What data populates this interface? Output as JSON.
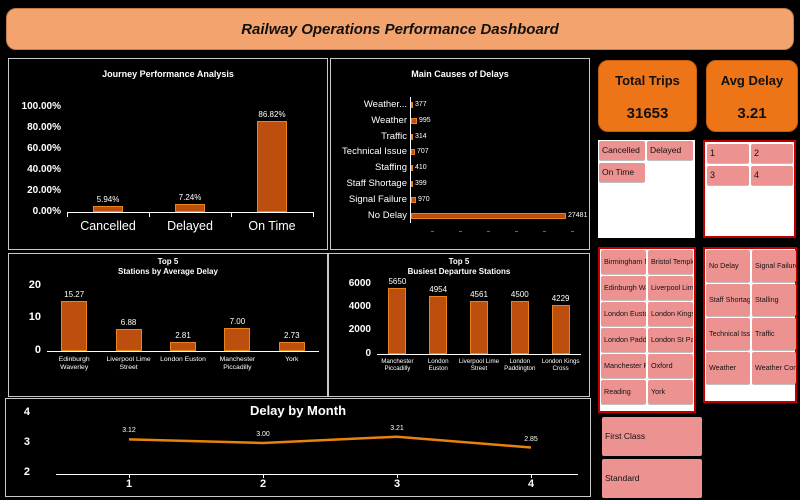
{
  "header": {
    "title": "Railway Operations Performance Dashboard"
  },
  "kpis": {
    "total_trips": {
      "label": "Total Trips",
      "value": "31653"
    },
    "avg_delay": {
      "label": "Avg Delay",
      "value": "3.21"
    }
  },
  "slicers": {
    "status": {
      "items": [
        "Cancelled",
        "Delayed",
        "On Time"
      ]
    },
    "months": {
      "items": [
        "1",
        "2",
        "3",
        "4"
      ]
    },
    "stations": {
      "items": [
        "Birmingham Ne...",
        "Bristol Temple ...",
        "Edinburgh Wav...",
        "Liverpool Lime ...",
        "London Euston",
        "London Kings ...",
        "London Paddin...",
        "London St Pan...",
        "Manchester Pi...",
        "Oxford",
        "Reading",
        "York"
      ]
    },
    "delay_causes": {
      "items": [
        "No Delay",
        "Signal Failure",
        "Staff Shortage",
        "Stalling",
        "Technical Iss...",
        "Traffic",
        "Weather",
        "Weather Con..."
      ]
    },
    "ticket_class": {
      "items": [
        "First Class",
        "Standard"
      ]
    }
  },
  "chart_data": [
    {
      "type": "bar",
      "title": "Journey Performance Analysis",
      "categories": [
        "Cancelled",
        "Delayed",
        "On Time"
      ],
      "values": [
        5.94,
        7.24,
        86.82
      ],
      "labels": [
        "5.94%",
        "7.24%",
        "86.82%"
      ],
      "yticks": [
        "0.00%",
        "20.00%",
        "40.00%",
        "60.00%",
        "80.00%",
        "100.00%"
      ],
      "ylim": [
        0,
        100
      ],
      "grid": false
    },
    {
      "type": "bar",
      "orientation": "horizontal",
      "title": "Main Causes of Delays",
      "categories": [
        "Weather...",
        "Weather",
        "Traffic",
        "Technical Issue",
        "Staffing",
        "Staff Shortage",
        "Signal Failure",
        "No Delay"
      ],
      "values": [
        377,
        995,
        314,
        707,
        410,
        399,
        970,
        27481
      ],
      "labels": [
        "377",
        "995",
        "314",
        "707",
        "410",
        "399",
        "970",
        "27481"
      ],
      "xlim": [
        0,
        27481
      ],
      "grid": false
    },
    {
      "type": "bar",
      "title": "Top 5 Stations by Average Delay",
      "title_lines": [
        "Top 5",
        "Stations by Average Delay"
      ],
      "categories": [
        "Edinburgh Waverley",
        "Liverpool Lime Street",
        "London Euston",
        "Manchester Piccadilly",
        "York"
      ],
      "values": [
        15.27,
        6.88,
        2.81,
        7.0,
        2.73
      ],
      "labels": [
        "15.27",
        "6.88",
        "2.81",
        "7.00",
        "2.73"
      ],
      "yticks": [
        "0",
        "10",
        "20"
      ],
      "ylim": [
        0,
        20
      ],
      "grid": false
    },
    {
      "type": "bar",
      "title": "Top 5 Busiest Departure Stations",
      "title_lines": [
        "Top 5",
        "Busiest Departure Stations"
      ],
      "categories": [
        "Manchester Piccadilly",
        "London Euston",
        "Liverpool Lime Street",
        "London Paddington",
        "London Kings Cross"
      ],
      "cat_lines": [
        [
          "Manchester",
          "Piccadilly"
        ],
        [
          "London Euston"
        ],
        [
          "Liverpool Lime",
          "Street"
        ],
        [
          "London",
          "Paddington"
        ],
        [
          "London Kings Cross"
        ]
      ],
      "values": [
        5650,
        4954,
        4561,
        4500,
        4229
      ],
      "labels": [
        "5650",
        "4954",
        "4561",
        "4500",
        "4229"
      ],
      "yticks": [
        "0",
        "2000",
        "4000",
        "6000"
      ],
      "ylim": [
        0,
        6000
      ],
      "grid": false
    },
    {
      "type": "line",
      "title": "Delay by Month",
      "x": [
        "1",
        "2",
        "3",
        "4"
      ],
      "values": [
        3.12,
        3.0,
        3.21,
        2.85
      ],
      "labels": [
        "3.12",
        "3.00",
        "3.21",
        "2.85"
      ],
      "yticks": [
        "2",
        "3",
        "4"
      ],
      "ylim": [
        2,
        4
      ],
      "grid": false,
      "legend": "none"
    }
  ],
  "colors": {
    "banner_bg": "#F2A36E",
    "kpi_bg": "#EE7418",
    "bar_fill": "#BC4E0E",
    "bar_border": "#E8831E",
    "line": "#E8820C",
    "tile_bg": "#EC9392",
    "slicer_border": "#C00000"
  }
}
